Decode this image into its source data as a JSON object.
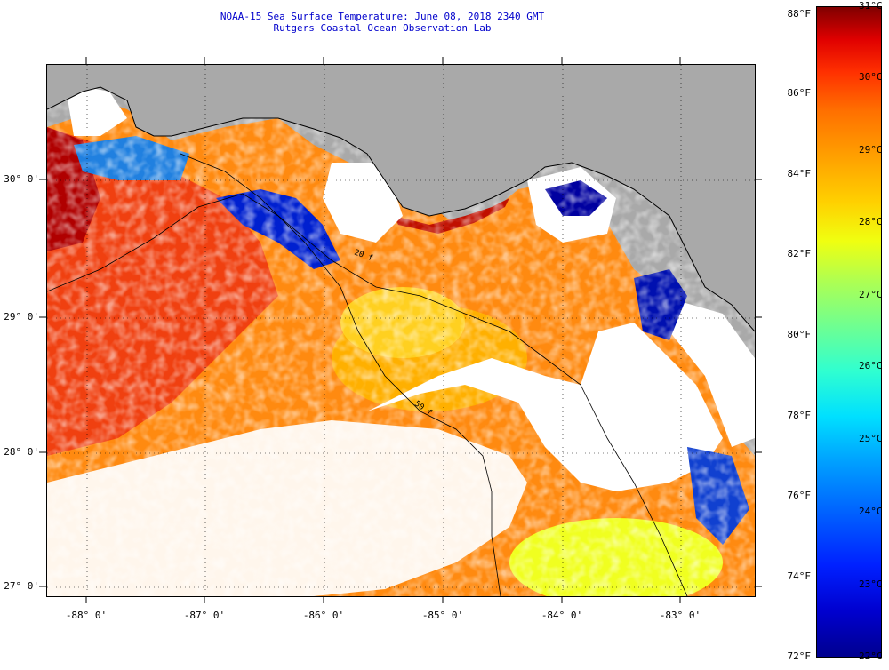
{
  "title": {
    "line1": "NOAA-15 Sea Surface Temperature:  June 08, 2018 2340 GMT",
    "line2": "Rutgers Coastal Ocean Observation Lab"
  },
  "map": {
    "latitude_labels": [
      "30° 0'",
      "29° 0'",
      "28° 0'",
      "27° 0'"
    ],
    "longitude_labels": [
      "-88° 0'",
      "-87° 0'",
      "-86° 0'",
      "-85° 0'",
      "-84° 0'",
      "-83° 0'"
    ],
    "contour_labels": [
      "20 f",
      "50 f"
    ],
    "colors": {
      "land": "#a9a9a9",
      "cloud": "#ffffff",
      "warm": "#ff7a00",
      "hot": "#e01000",
      "cool": "#1040e0",
      "cold": "#00008f"
    }
  },
  "colorbar": {
    "fahrenheit_labels": [
      "88°F",
      "86°F",
      "84°F",
      "82°F",
      "80°F",
      "78°F",
      "76°F",
      "74°F",
      "72°F"
    ],
    "celsius_labels": [
      "31°C",
      "30°C",
      "29°C",
      "28°C",
      "27°C",
      "26°C",
      "25°C",
      "24°C",
      "23°C",
      "22°C"
    ]
  }
}
